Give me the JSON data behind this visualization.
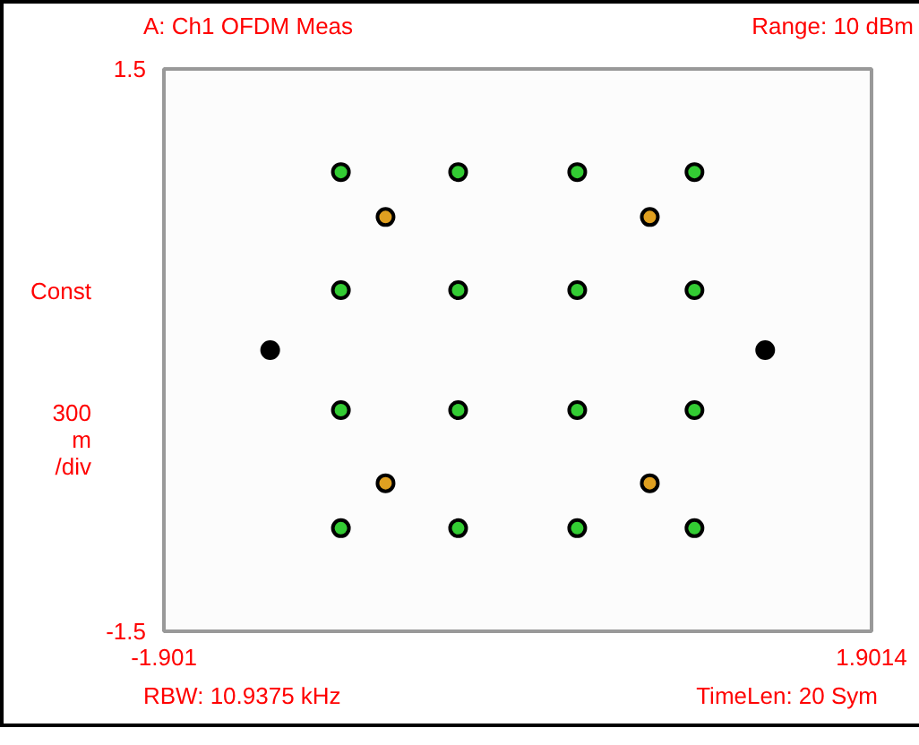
{
  "chart_data": {
    "type": "scatter",
    "title": "A: Ch1 OFDM Meas",
    "ylabel": "Const",
    "annotations": [
      "Range: 10 dBm",
      "300\nm\n/div",
      "RBW: 10.9375 kHz",
      "TimeLen: 20  Sym"
    ],
    "xlim": [
      -1.901,
      1.9014
    ],
    "xticks": [
      -1.901,
      1.9014
    ],
    "ylim": [
      -1.5,
      1.5
    ],
    "yticks": [
      1.5,
      -1.5
    ],
    "marker": "circle",
    "series": [
      {
        "color": "#33cc33",
        "x": [
          -0.95,
          -0.32,
          0.32,
          0.95,
          -0.95,
          -0.32,
          0.32,
          0.95,
          -0.95,
          -0.32,
          0.32,
          0.95,
          -0.95,
          -0.32,
          0.32,
          0.95
        ],
        "values": [
          0.95,
          0.95,
          0.95,
          0.95,
          0.32,
          0.32,
          0.32,
          0.32,
          -0.32,
          -0.32,
          -0.32,
          -0.32,
          -0.95,
          -0.95,
          -0.95,
          -0.95
        ]
      },
      {
        "color": "#e0a020",
        "x": [
          -0.71,
          0.71,
          -0.71,
          0.71
        ],
        "values": [
          0.71,
          0.71,
          -0.71,
          -0.71
        ]
      },
      {
        "color": "#000000",
        "x": [
          -1.33,
          1.33
        ],
        "values": [
          0,
          0
        ]
      }
    ]
  }
}
